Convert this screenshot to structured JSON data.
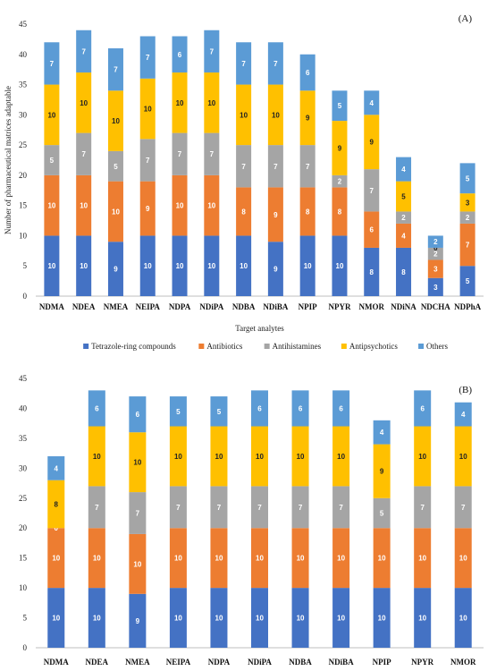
{
  "chart_data": [
    {
      "type": "bar",
      "stacked": true,
      "panel_label": "(A)",
      "xlabel": "Target analytes",
      "ylabel": "Number of pharmaceutical matrices adaptable",
      "ylim": [
        0,
        45
      ],
      "yticks": [
        0,
        5,
        10,
        15,
        20,
        25,
        30,
        35,
        40,
        45
      ],
      "grid": false,
      "categories": [
        "NDMA",
        "NDEA",
        "NMEA",
        "NEIPA",
        "NDPA",
        "NDiPA",
        "NDBA",
        "NDiBA",
        "NPIP",
        "NPYR",
        "NMOR",
        "NDiNA",
        "NDCHA",
        "NDPhA"
      ],
      "series": [
        {
          "name": "Tetrazole-ring compounds",
          "color": "#4472C4",
          "values": [
            10,
            10,
            9,
            10,
            10,
            10,
            10,
            9,
            10,
            10,
            8,
            8,
            3,
            5
          ]
        },
        {
          "name": "Antibiotics",
          "color": "#ED7D31",
          "values": [
            10,
            10,
            10,
            9,
            10,
            10,
            8,
            9,
            8,
            8,
            6,
            4,
            3,
            7
          ]
        },
        {
          "name": "Antihistamines",
          "color": "#A5A5A5",
          "values": [
            5,
            7,
            5,
            7,
            7,
            7,
            7,
            7,
            7,
            2,
            7,
            2,
            2,
            2
          ]
        },
        {
          "name": "Antipsychotics",
          "color": "#FFC000",
          "values": [
            10,
            10,
            10,
            10,
            10,
            10,
            10,
            10,
            9,
            9,
            9,
            5,
            0,
            3
          ]
        },
        {
          "name": "Others",
          "color": "#5B9BD5",
          "values": [
            7,
            7,
            7,
            7,
            6,
            7,
            7,
            7,
            6,
            5,
            4,
            4,
            2,
            5
          ]
        }
      ],
      "legend": {
        "placement": "bottom"
      }
    },
    {
      "type": "bar",
      "stacked": true,
      "panel_label": "(B)",
      "xlabel": "",
      "ylabel": "",
      "ylim": [
        0,
        45
      ],
      "yticks": [
        0,
        5,
        10,
        15,
        20,
        25,
        30,
        35,
        40,
        45
      ],
      "grid": false,
      "categories": [
        "NDMA",
        "NDEA",
        "NMEA",
        "NEIPA",
        "NDPA",
        "NDiPA",
        "NDBA",
        "NDiBA",
        "NPIP",
        "NPYR",
        "NMOR"
      ],
      "series": [
        {
          "name": "Tetrazole-ring compounds",
          "color": "#4472C4",
          "values": [
            10,
            10,
            9,
            10,
            10,
            10,
            10,
            10,
            10,
            10,
            10
          ]
        },
        {
          "name": "Antibiotics",
          "color": "#ED7D31",
          "values": [
            10,
            10,
            10,
            10,
            10,
            10,
            10,
            10,
            10,
            10,
            10
          ]
        },
        {
          "name": "Antihistamines",
          "color": "#A5A5A5",
          "values": [
            0,
            7,
            7,
            7,
            7,
            7,
            7,
            7,
            5,
            7,
            7
          ]
        },
        {
          "name": "Antipsychotics",
          "color": "#FFC000",
          "values": [
            8,
            10,
            10,
            10,
            10,
            10,
            10,
            10,
            9,
            10,
            10
          ]
        },
        {
          "name": "Others",
          "color": "#5B9BD5",
          "values": [
            4,
            6,
            6,
            5,
            5,
            6,
            6,
            6,
            4,
            6,
            4
          ]
        }
      ]
    }
  ]
}
